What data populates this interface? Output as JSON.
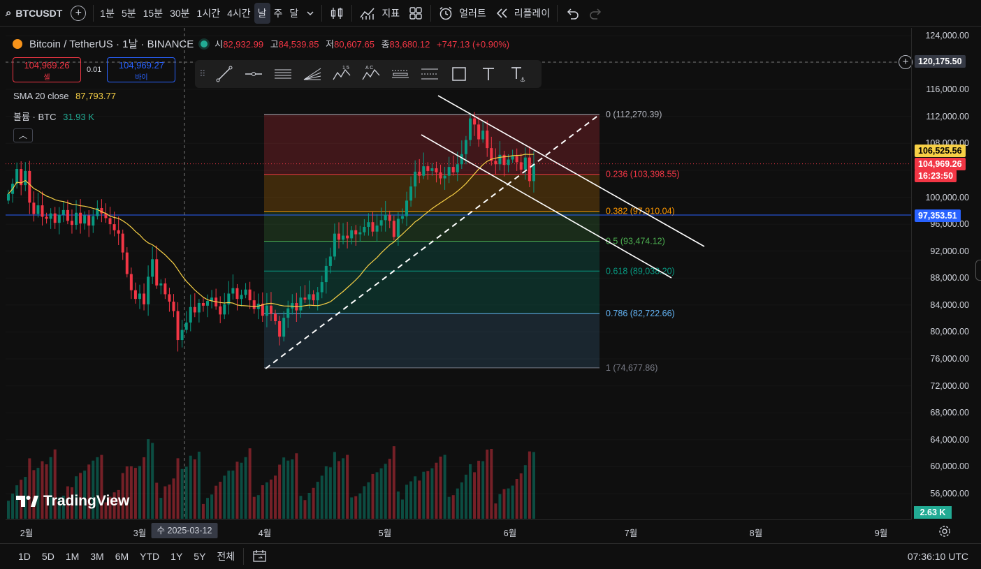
{
  "toolbar": {
    "symbol": "BTCUSDT",
    "timeframes": [
      "1분",
      "5분",
      "15분",
      "30분",
      "1시간",
      "4시간",
      "날",
      "주",
      "달"
    ],
    "active_timeframe": "날",
    "indicators_label": "지표",
    "alert_label": "얼러트",
    "replay_label": "리플레이"
  },
  "legend": {
    "title": "Bitcoin / TetherUS · 1날 · BINANCE",
    "open_label": "시",
    "open": "82,932.99",
    "high_label": "고",
    "high": "84,539.85",
    "low_label": "저",
    "low": "80,607.65",
    "close_label": "종",
    "close": "83,680.12",
    "change": "+747.13 (+0.90%)"
  },
  "trade": {
    "sell_price": "104,969.26",
    "sell_label": "셀",
    "spread": "0.01",
    "buy_price": "104,969.27",
    "buy_label": "바이"
  },
  "indicators": {
    "sma_label": "SMA 20 close",
    "sma_value": "87,793.77",
    "volume_label": "볼륨 · BTC",
    "volume_value": "31.93 K"
  },
  "price_axis": {
    "ticks": [
      "124,000.00",
      "116,000.00",
      "112,000.00",
      "108,000.00",
      "100,000.00",
      "96,000.00",
      "92,000.00",
      "88,000.00",
      "84,000.00",
      "80,000.00",
      "76,000.00",
      "72,000.00",
      "68,000.00",
      "64,000.00",
      "60,000.00",
      "56,000.00"
    ],
    "crosshair_price": "120,175.50",
    "sma_price": "106,525.56",
    "last_price": "104,969.26",
    "countdown": "16:23:50",
    "hline_price": "97,353.51",
    "volume_last": "2.63 K"
  },
  "time_axis": {
    "labels": [
      "2월",
      "3월",
      "4월",
      "5월",
      "6월",
      "7월",
      "8월",
      "9월"
    ],
    "crosshair_date": "수 2025-03-12"
  },
  "fib": {
    "levels": [
      {
        "ratio": "0",
        "price": "(112,270.39)",
        "color": "#b2b5be"
      },
      {
        "ratio": "0.236",
        "price": "(103,398.55)",
        "color": "#f23645"
      },
      {
        "ratio": "0.382",
        "price": "(97,910.04)",
        "color": "#ff9800"
      },
      {
        "ratio": "0.5",
        "price": "(93,474.12)",
        "color": "#4caf50"
      },
      {
        "ratio": "0.618",
        "price": "(89,038.20)",
        "color": "#089981"
      },
      {
        "ratio": "0.786",
        "price": "(82,722.66)",
        "color": "#64b5f6"
      },
      {
        "ratio": "1",
        "price": "(74,677.86)",
        "color": "#787b86"
      }
    ]
  },
  "bottom": {
    "ranges": [
      "1D",
      "5D",
      "1M",
      "3M",
      "6M",
      "YTD",
      "1Y",
      "5Y",
      "전체"
    ],
    "clock": "07:36:10 UTC"
  },
  "brand": {
    "logo_text": "TradingView"
  },
  "colors": {
    "up": "#089981",
    "down": "#f23645",
    "sma": "#f7d046",
    "hline": "#2962ff",
    "background": "#0f0f0f"
  }
}
